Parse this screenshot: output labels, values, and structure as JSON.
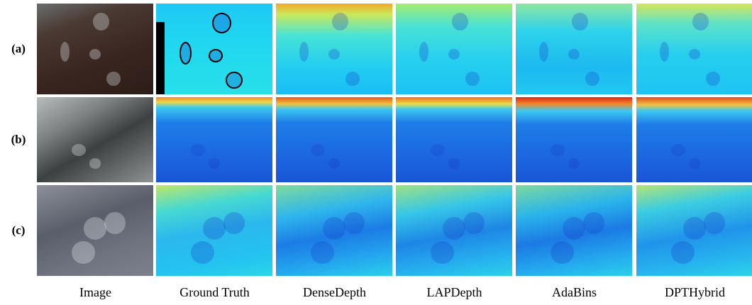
{
  "rows": [
    "(a)",
    "(b)",
    "(c)"
  ],
  "columns": [
    "Image",
    "Ground Truth",
    "DenseDepth",
    "LAPDepth",
    "AdaBins",
    "DPTHybrid"
  ]
}
